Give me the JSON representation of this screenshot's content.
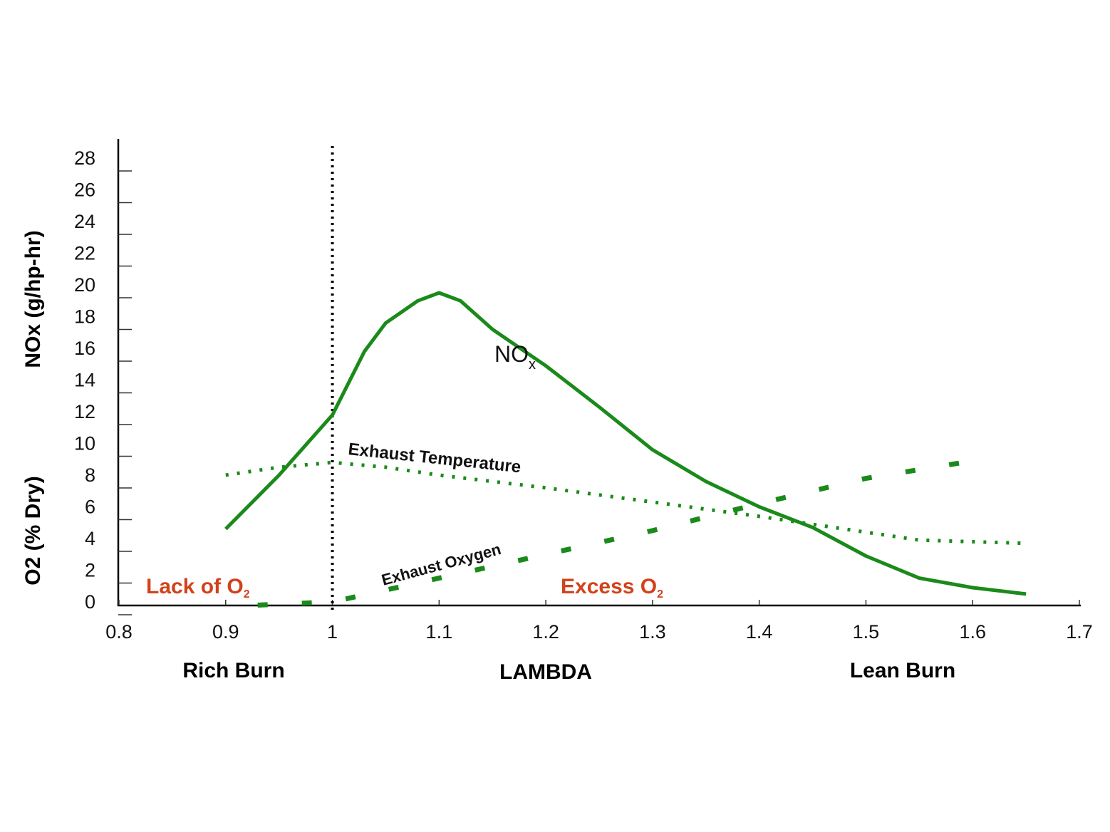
{
  "chart_data": {
    "type": "line",
    "xlabel": "LAMBDA",
    "ylabel_top": "NOx (g/hp-hr)",
    "ylabel_bottom": "O2 (% Dry)",
    "xlim": [
      0.8,
      1.7
    ],
    "ylim": [
      0,
      28
    ],
    "grid": false,
    "x_ticks": [
      "0.8",
      "0.9",
      "1",
      "1.1",
      "1.2",
      "1.3",
      "1.4",
      "1.5",
      "1.6",
      "1.7"
    ],
    "y_ticks": [
      "0",
      "2",
      "4",
      "6",
      "8",
      "10",
      "12",
      "14",
      "16",
      "18",
      "20",
      "22",
      "24",
      "26",
      "28"
    ],
    "reference_line": {
      "x": 1.0,
      "style": "dotted",
      "color": "#000000"
    },
    "series": [
      {
        "name": "NOx",
        "style": "solid",
        "color": "#1a8a1a",
        "x": [
          0.9,
          0.95,
          1.0,
          1.03,
          1.05,
          1.08,
          1.1,
          1.12,
          1.15,
          1.2,
          1.25,
          1.3,
          1.35,
          1.4,
          1.45,
          1.5,
          1.55,
          1.6,
          1.65
        ],
        "y": [
          4.6,
          8.0,
          11.8,
          15.8,
          17.6,
          19.0,
          19.5,
          19.0,
          17.2,
          14.9,
          12.3,
          9.6,
          7.6,
          6.0,
          4.7,
          2.9,
          1.5,
          0.9,
          0.5
        ]
      },
      {
        "name": "Exhaust Temperature",
        "style": "dotted",
        "color": "#1a8a1a",
        "x": [
          0.9,
          0.95,
          1.0,
          1.05,
          1.1,
          1.2,
          1.3,
          1.4,
          1.5,
          1.55,
          1.6,
          1.65
        ],
        "y": [
          8.0,
          8.5,
          8.8,
          8.5,
          8.0,
          7.2,
          6.3,
          5.4,
          4.4,
          3.9,
          3.8,
          3.7
        ]
      },
      {
        "name": "Exhaust Oxygen",
        "style": "dashed",
        "color": "#1a8a1a",
        "x": [
          0.93,
          1.0,
          1.1,
          1.2,
          1.3,
          1.4,
          1.5,
          1.6
        ],
        "y": [
          -0.2,
          0.0,
          1.5,
          3.0,
          4.5,
          6.2,
          7.8,
          8.9
        ]
      }
    ],
    "annotations": {
      "nox_label": "NO",
      "nox_sub": "x",
      "temp_label": "Exhaust Temperature",
      "oxygen_label": "Exhaust Oxygen",
      "lack_label": "Lack of O",
      "excess_label": "Excess O",
      "o2_sub": "2",
      "rich": "Rich Burn",
      "lean": "Lean Burn",
      "annotation_color": "#d2421a"
    }
  }
}
